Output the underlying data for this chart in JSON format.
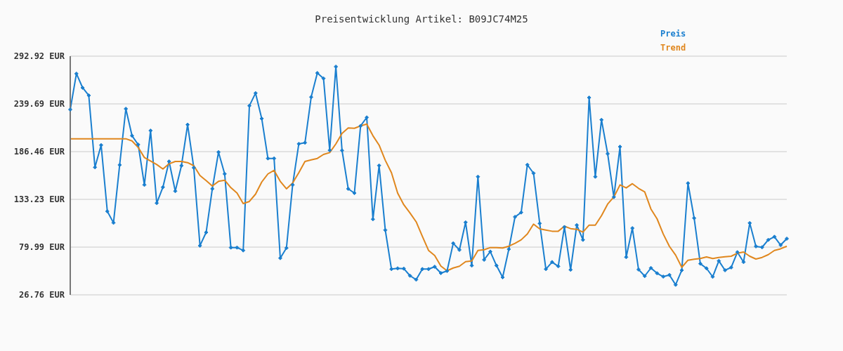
{
  "chart_data": {
    "type": "line",
    "title": "Preisentwicklung Artikel: B09JC74M25",
    "categories": [
      null,
      null,
      null,
      null,
      null,
      null,
      null,
      null,
      null,
      null,
      null,
      null,
      null,
      null,
      null,
      null,
      null,
      null,
      null,
      null,
      null,
      null,
      null,
      null,
      null,
      null,
      null,
      null,
      null,
      null,
      null,
      null,
      null,
      null,
      null,
      null,
      null,
      null,
      null,
      null,
      null,
      null,
      null,
      null,
      null,
      null,
      null,
      null,
      null,
      null,
      null,
      null,
      null,
      null,
      null,
      null,
      null,
      null,
      null,
      null,
      null,
      null,
      null,
      null,
      null,
      null,
      null,
      null,
      null,
      null,
      null,
      null,
      null,
      null,
      null,
      null,
      null,
      null,
      null,
      null,
      null,
      null,
      null,
      null,
      null,
      null,
      null,
      null,
      null,
      null,
      null,
      null,
      null,
      null,
      null,
      null,
      null,
      null,
      null,
      null,
      null,
      null,
      null,
      null,
      null,
      null,
      null,
      null,
      null,
      null,
      null,
      null,
      null,
      null,
      null,
      null,
      null
    ],
    "series": [
      {
        "name": "Preis",
        "color": "#1a7fcf",
        "marker": "diamond",
        "values": [
          233.4,
          273.4,
          257.7,
          249.1,
          169.0,
          193.7,
          119.9,
          107.1,
          171.6,
          234.2,
          204.2,
          194.3,
          149.4,
          209.9,
          129.1,
          146.8,
          175.5,
          142.4,
          170.8,
          216.5,
          168.5,
          81.6,
          96.4,
          145.0,
          185.9,
          161.6,
          79.5,
          79.5,
          76.3,
          237.6,
          251.7,
          223.3,
          178.9,
          178.9,
          67.7,
          79.0,
          149.4,
          195.1,
          196.4,
          247.3,
          274.1,
          268.1,
          188.0,
          281.2,
          187.8,
          145.0,
          140.3,
          215.1,
          224.6,
          111.1,
          171.0,
          99.0,
          55.5,
          56.3,
          56.0,
          48.1,
          43.7,
          55.5,
          55.5,
          58.1,
          51.0,
          53.4,
          84.2,
          76.9,
          107.6,
          59.4,
          158.5,
          65.9,
          75.0,
          59.4,
          46.3,
          77.7,
          113.7,
          118.6,
          171.8,
          162.4,
          106.4,
          55.5,
          63.3,
          58.6,
          102.4,
          54.7,
          104.5,
          88.1,
          246.7,
          158.5,
          221.9,
          184.1,
          135.8,
          191.9,
          68.8,
          101.1,
          55.0,
          47.7,
          56.7,
          50.8,
          47.1,
          48.9,
          38.0,
          54.2,
          151.2,
          112.3,
          61.5,
          56.3,
          46.9,
          64.6,
          54.2,
          57.3,
          74.3,
          63.3,
          106.8,
          80.8,
          79.8,
          88.1,
          91.5,
          82.3,
          89.4
        ]
      },
      {
        "name": "Trend",
        "color": "#e0871e",
        "marker": "none",
        "values": [
          200.8,
          200.8,
          200.8,
          200.8,
          200.8,
          200.8,
          200.8,
          200.8,
          200.8,
          200.8,
          198.4,
          191.2,
          179.9,
          176.0,
          172.1,
          167.1,
          172.9,
          175.5,
          175.5,
          174.2,
          170.8,
          159.8,
          154.1,
          148.1,
          153.3,
          154.6,
          146.3,
          140.3,
          128.5,
          130.9,
          139.1,
          152.6,
          161.6,
          165.6,
          153.3,
          145.0,
          151.5,
          163.0,
          175.5,
          177.3,
          178.9,
          183.3,
          185.4,
          195.1,
          206.8,
          212.8,
          212.5,
          215.1,
          217.2,
          204.2,
          193.7,
          176.8,
          163.0,
          140.3,
          127.2,
          118.1,
          108.2,
          92.0,
          76.3,
          70.6,
          58.9,
          53.6,
          56.7,
          58.6,
          63.8,
          64.6,
          76.3,
          77.1,
          79.5,
          79.5,
          79.0,
          81.0,
          84.2,
          88.1,
          94.6,
          105.6,
          100.3,
          99.0,
          97.7,
          97.7,
          103.3,
          100.6,
          99.8,
          96.7,
          104.5,
          104.5,
          115.0,
          128.0,
          135.8,
          149.4,
          146.0,
          150.7,
          145.5,
          141.6,
          122.5,
          111.5,
          94.6,
          80.8,
          71.1,
          57.5,
          65.4,
          66.5,
          67.2,
          69.0,
          67.2,
          68.5,
          69.3,
          69.8,
          73.2,
          74.5,
          69.8,
          66.7,
          68.5,
          71.6,
          76.3,
          78.1,
          81.0
        ]
      }
    ],
    "ylim": [
      26.76,
      292.92
    ],
    "yticks": [
      {
        "value": 26.76,
        "label": "26.76 EUR"
      },
      {
        "value": 79.99,
        "label": "79.99 EUR"
      },
      {
        "value": 133.23,
        "label": "133.23 EUR"
      },
      {
        "value": 186.46,
        "label": "186.46 EUR"
      },
      {
        "value": 239.69,
        "label": "239.69 EUR"
      },
      {
        "value": 292.92,
        "label": "292.92 EUR"
      }
    ],
    "grid": "y",
    "legend": "top right",
    "tick_labels": "y"
  }
}
